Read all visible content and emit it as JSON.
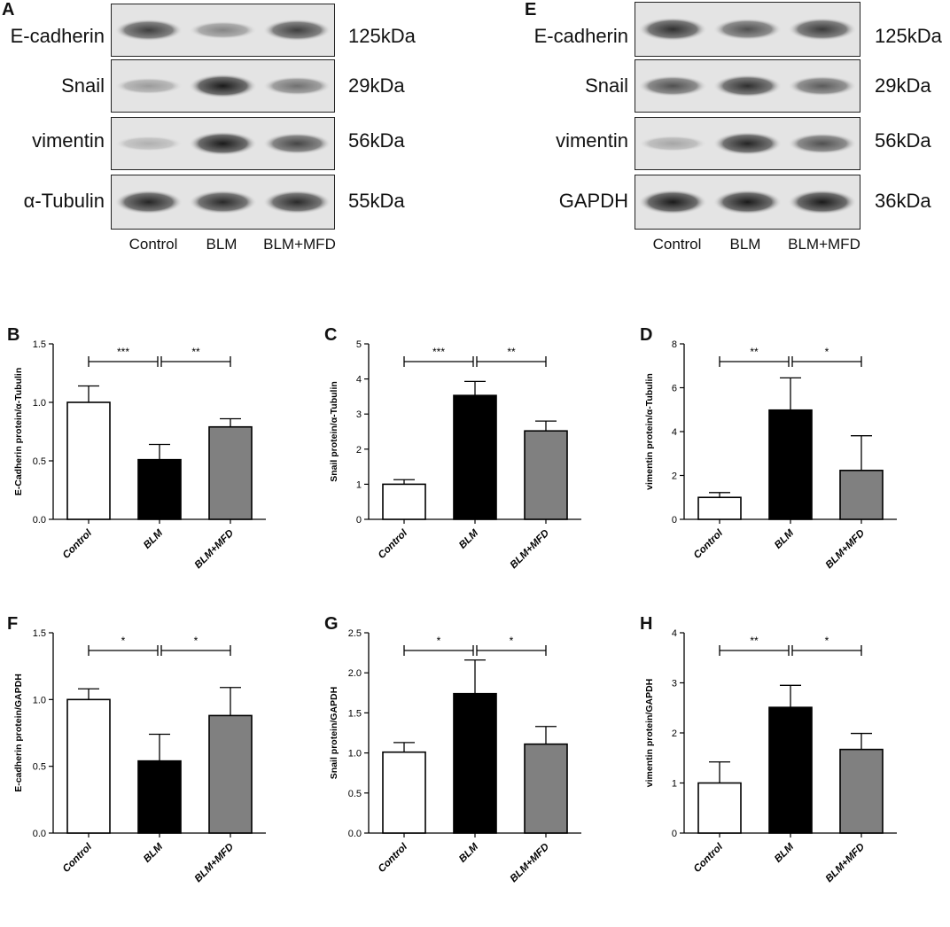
{
  "blots": [
    {
      "panel": "A",
      "rows": [
        {
          "protein": "E-cadherin",
          "kda": "125kDa",
          "intensity": [
            0.78,
            0.45,
            0.78
          ]
        },
        {
          "protein": "Snail",
          "kda": "29kDa",
          "intensity": [
            0.35,
            0.95,
            0.55
          ]
        },
        {
          "protein": "vimentin",
          "kda": "56kDa",
          "intensity": [
            0.25,
            0.95,
            0.75
          ]
        },
        {
          "protein": "α-Tubulin",
          "kda": "55kDa",
          "intensity": [
            0.9,
            0.88,
            0.88
          ]
        }
      ],
      "lanes": [
        "Control",
        "BLM",
        "BLM+MFD"
      ]
    },
    {
      "panel": "E",
      "rows": [
        {
          "protein": "E-cadherin",
          "kda": "125kDa",
          "intensity": [
            0.85,
            0.7,
            0.8
          ]
        },
        {
          "protein": "Snail",
          "kda": "29kDa",
          "intensity": [
            0.7,
            0.85,
            0.65
          ]
        },
        {
          "protein": "vimentin",
          "kda": "56kDa",
          "intensity": [
            0.3,
            0.9,
            0.7
          ]
        },
        {
          "protein": "GAPDH",
          "kda": "36kDa",
          "intensity": [
            0.95,
            0.95,
            0.95
          ]
        }
      ],
      "lanes": [
        "Control",
        "BLM",
        "BLM+MFD"
      ]
    }
  ],
  "chart_data": [
    {
      "panel": "B",
      "type": "bar",
      "categories": [
        "Control",
        "BLM",
        "BLM+MFD"
      ],
      "values": [
        1.0,
        0.51,
        0.79
      ],
      "errors": [
        0.14,
        0.13,
        0.07
      ],
      "ylabel": "E-Cadherin protein/α-Tubulin",
      "ylim": [
        0,
        1.5
      ],
      "yticks": [
        "0.0",
        "0.5",
        "1.0",
        "1.5"
      ],
      "colors": [
        "#ffffff",
        "#000000",
        "#808080"
      ],
      "significance": [
        {
          "from": 0,
          "to": 1,
          "label": "***"
        },
        {
          "from": 1,
          "to": 2,
          "label": "**"
        }
      ]
    },
    {
      "panel": "C",
      "type": "bar",
      "categories": [
        "Control",
        "BLM",
        "BLM+MFD"
      ],
      "values": [
        1.0,
        3.53,
        2.52
      ],
      "errors": [
        0.13,
        0.4,
        0.28
      ],
      "ylabel": "Snail protein/α-Tubulin",
      "ylim": [
        0,
        5
      ],
      "yticks": [
        "0",
        "1",
        "2",
        "3",
        "4",
        "5"
      ],
      "colors": [
        "#ffffff",
        "#000000",
        "#808080"
      ],
      "significance": [
        {
          "from": 0,
          "to": 1,
          "label": "***"
        },
        {
          "from": 1,
          "to": 2,
          "label": "**"
        }
      ]
    },
    {
      "panel": "D",
      "type": "bar",
      "categories": [
        "Control",
        "BLM",
        "BLM+MFD"
      ],
      "values": [
        1.0,
        4.98,
        2.23
      ],
      "errors": [
        0.22,
        1.47,
        1.58
      ],
      "ylabel": "vimentin protein/α-Tubulin",
      "ylim": [
        0,
        8
      ],
      "yticks": [
        "0",
        "2",
        "4",
        "6",
        "8"
      ],
      "colors": [
        "#ffffff",
        "#000000",
        "#808080"
      ],
      "significance": [
        {
          "from": 0,
          "to": 1,
          "label": "**"
        },
        {
          "from": 1,
          "to": 2,
          "label": "*"
        }
      ]
    },
    {
      "panel": "F",
      "type": "bar",
      "categories": [
        "Control",
        "BLM",
        "BLM+MFD"
      ],
      "values": [
        1.0,
        0.54,
        0.88
      ],
      "errors": [
        0.08,
        0.2,
        0.21
      ],
      "ylabel": "E-cadherin protein/GAPDH",
      "ylim": [
        0,
        1.5
      ],
      "yticks": [
        "0.0",
        "0.5",
        "1.0",
        "1.5"
      ],
      "colors": [
        "#ffffff",
        "#000000",
        "#808080"
      ],
      "significance": [
        {
          "from": 0,
          "to": 1,
          "label": "*"
        },
        {
          "from": 1,
          "to": 2,
          "label": "*"
        }
      ]
    },
    {
      "panel": "G",
      "type": "bar",
      "categories": [
        "Control",
        "BLM",
        "BLM+MFD"
      ],
      "values": [
        1.01,
        1.74,
        1.11
      ],
      "errors": [
        0.12,
        0.42,
        0.22
      ],
      "ylabel": "Snail protein/GAPDH",
      "ylim": [
        0,
        2.5
      ],
      "yticks": [
        "0.0",
        "0.5",
        "1.0",
        "1.5",
        "2.0",
        "2.5"
      ],
      "colors": [
        "#ffffff",
        "#000000",
        "#808080"
      ],
      "significance": [
        {
          "from": 0,
          "to": 1,
          "label": "*"
        },
        {
          "from": 1,
          "to": 2,
          "label": "*"
        }
      ]
    },
    {
      "panel": "H",
      "type": "bar",
      "categories": [
        "Control",
        "BLM",
        "BLM+MFD"
      ],
      "values": [
        1.0,
        2.51,
        1.67
      ],
      "errors": [
        0.42,
        0.44,
        0.32
      ],
      "ylabel": "vimentin protein/GAPDH",
      "ylim": [
        0,
        4
      ],
      "yticks": [
        "0",
        "1",
        "2",
        "3",
        "4"
      ],
      "colors": [
        "#ffffff",
        "#000000",
        "#808080"
      ],
      "significance": [
        {
          "from": 0,
          "to": 1,
          "label": "**"
        },
        {
          "from": 1,
          "to": 2,
          "label": "*"
        }
      ]
    }
  ]
}
